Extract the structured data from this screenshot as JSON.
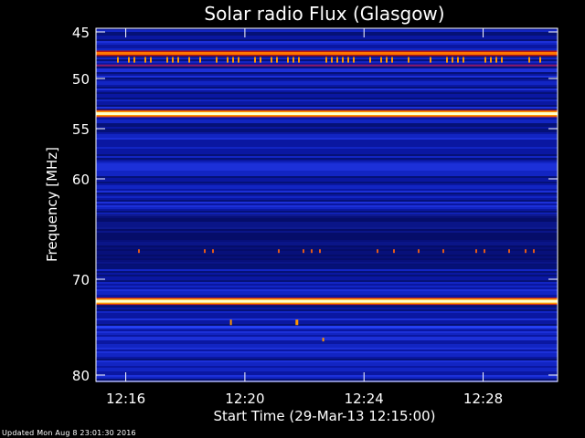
{
  "chart_data": {
    "type": "heatmap",
    "title": "Solar radio Flux (Glasgow)",
    "xlabel": "Start Time (29-Mar-13 12:15:00)",
    "ylabel": "Frequency [MHz]",
    "x_range_minutes": [
      "12:15:00",
      "12:30:30"
    ],
    "x_ticks": [
      "12:16",
      "12:20",
      "12:24",
      "12:28"
    ],
    "x_tick_values_min": [
      16,
      20,
      24,
      28
    ],
    "y_range_mhz": [
      45,
      80
    ],
    "y_reversed": true,
    "y_ticks": [
      45,
      50,
      55,
      60,
      70,
      80
    ],
    "y_scale": "nonlinear (channel index)",
    "colormap": [
      "#000060",
      "#0a1ab4",
      "#1e3cff",
      "#c81e1e",
      "#ff9600",
      "#ffffc8"
    ],
    "bright_bands_mhz": [
      {
        "freq": 47.3,
        "intensity": "high"
      },
      {
        "freq": 53.5,
        "intensity": "saturated"
      },
      {
        "freq": 72.3,
        "intensity": "saturated"
      }
    ],
    "grid": false
  },
  "footer": {
    "updated": "Updated Mon Aug  8 23:01:30 2016"
  }
}
